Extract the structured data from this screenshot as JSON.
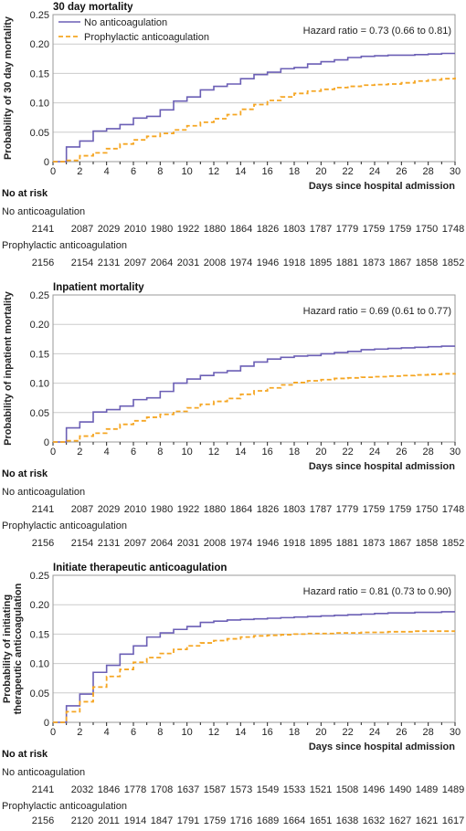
{
  "colors": {
    "no_anticoag": "#6b5fb5",
    "prophylactic": "#f5a623",
    "grid": "#cccccc",
    "frame": "#999999"
  },
  "legend": {
    "no_anticoag": "No anticoagulation",
    "prophylactic": "Prophylactic anticoagulation"
  },
  "xaxis": {
    "label": "Days since hospital admission",
    "ticks": [
      0,
      2,
      4,
      6,
      8,
      10,
      12,
      14,
      16,
      18,
      20,
      22,
      24,
      26,
      28,
      30
    ]
  },
  "risk_title": "No at risk",
  "chart_data": [
    {
      "type": "line",
      "step": true,
      "title": "30 day mortality",
      "ylabel": "Probability of 30 day mortality",
      "xlabel": "Days since hospital admission",
      "hazard_ratio": "Hazard ratio = 0.73 (0.66 to 0.81)",
      "xlim": [
        0,
        30
      ],
      "ylim": [
        0,
        0.25
      ],
      "yticks": [
        "0",
        "0.05",
        "0.10",
        "0.15",
        "0.20",
        "0.25"
      ],
      "legend": "top-left",
      "grid": true,
      "series": [
        {
          "name": "No anticoagulation",
          "x": [
            0,
            1,
            2,
            3,
            4,
            5,
            6,
            7,
            8,
            9,
            10,
            11,
            12,
            13,
            14,
            15,
            16,
            17,
            18,
            19,
            20,
            21,
            22,
            23,
            24,
            25,
            26,
            27,
            28,
            29,
            30
          ],
          "y": [
            0,
            0.025,
            0.035,
            0.052,
            0.056,
            0.063,
            0.074,
            0.077,
            0.088,
            0.103,
            0.11,
            0.122,
            0.128,
            0.132,
            0.141,
            0.148,
            0.152,
            0.158,
            0.16,
            0.166,
            0.17,
            0.173,
            0.177,
            0.179,
            0.18,
            0.181,
            0.181,
            0.182,
            0.183,
            0.184,
            0.184
          ]
        },
        {
          "name": "Prophylactic anticoagulation",
          "x": [
            0,
            1,
            2,
            3,
            4,
            5,
            6,
            7,
            8,
            9,
            10,
            11,
            12,
            13,
            14,
            15,
            16,
            17,
            18,
            19,
            20,
            21,
            22,
            23,
            24,
            25,
            26,
            27,
            28,
            29,
            30
          ],
          "y": [
            0,
            0.002,
            0.01,
            0.015,
            0.022,
            0.03,
            0.037,
            0.043,
            0.048,
            0.054,
            0.061,
            0.067,
            0.073,
            0.08,
            0.089,
            0.097,
            0.104,
            0.11,
            0.116,
            0.12,
            0.123,
            0.126,
            0.128,
            0.13,
            0.131,
            0.132,
            0.134,
            0.137,
            0.139,
            0.141,
            0.143
          ]
        }
      ],
      "at_risk": [
        {
          "name": "No anticoagulation",
          "values": [
            2141,
            2087,
            2029,
            2010,
            1980,
            1922,
            1880,
            1864,
            1826,
            1803,
            1787,
            1779,
            1759,
            1759,
            1750,
            1748
          ]
        },
        {
          "name": "Prophylactic anticoagulation",
          "values": [
            2156,
            2154,
            2131,
            2097,
            2064,
            2031,
            2008,
            1974,
            1946,
            1918,
            1895,
            1881,
            1873,
            1867,
            1858,
            1852
          ]
        }
      ]
    },
    {
      "type": "line",
      "step": true,
      "title": "Inpatient mortality",
      "ylabel": "Probability of inpatient mortality",
      "xlabel": "Days since hospital admission",
      "hazard_ratio": "Hazard ratio = 0.69 (0.61 to 0.77)",
      "xlim": [
        0,
        30
      ],
      "ylim": [
        0,
        0.25
      ],
      "yticks": [
        "0",
        "0.05",
        "0.10",
        "0.15",
        "0.20",
        "0.25"
      ],
      "grid": true,
      "series": [
        {
          "name": "No anticoagulation",
          "x": [
            0,
            1,
            2,
            3,
            4,
            5,
            6,
            7,
            8,
            9,
            10,
            11,
            12,
            13,
            14,
            15,
            16,
            17,
            18,
            19,
            20,
            21,
            22,
            23,
            24,
            25,
            26,
            27,
            28,
            29,
            30
          ],
          "y": [
            0,
            0.024,
            0.034,
            0.051,
            0.055,
            0.061,
            0.072,
            0.075,
            0.086,
            0.1,
            0.107,
            0.113,
            0.118,
            0.121,
            0.129,
            0.136,
            0.141,
            0.144,
            0.146,
            0.147,
            0.15,
            0.152,
            0.154,
            0.157,
            0.158,
            0.159,
            0.16,
            0.161,
            0.162,
            0.163,
            0.163
          ]
        },
        {
          "name": "Prophylactic anticoagulation",
          "x": [
            0,
            1,
            2,
            3,
            4,
            5,
            6,
            7,
            8,
            9,
            10,
            11,
            12,
            13,
            14,
            15,
            16,
            17,
            18,
            19,
            20,
            21,
            22,
            23,
            24,
            25,
            26,
            27,
            28,
            29,
            30
          ],
          "y": [
            0,
            0.002,
            0.01,
            0.015,
            0.022,
            0.03,
            0.036,
            0.042,
            0.047,
            0.052,
            0.058,
            0.064,
            0.069,
            0.074,
            0.081,
            0.087,
            0.092,
            0.097,
            0.101,
            0.104,
            0.106,
            0.108,
            0.109,
            0.11,
            0.111,
            0.112,
            0.113,
            0.114,
            0.115,
            0.116,
            0.117
          ]
        }
      ],
      "at_risk": [
        {
          "name": "No anticoagulation",
          "values": [
            2141,
            2087,
            2029,
            2010,
            1980,
            1922,
            1880,
            1864,
            1826,
            1803,
            1787,
            1779,
            1759,
            1759,
            1750,
            1748
          ]
        },
        {
          "name": "Prophylactic anticoagulation",
          "values": [
            2156,
            2154,
            2131,
            2097,
            2064,
            2031,
            2008,
            1974,
            1946,
            1918,
            1895,
            1881,
            1873,
            1867,
            1858,
            1852
          ]
        }
      ]
    },
    {
      "type": "line",
      "step": true,
      "title": "Initiate therapeutic anticoagulation",
      "ylabel": "Probability of initiating therapeutic anticoagulation",
      "ylabel_lines": [
        "Probability of initiating",
        "therapeutic anticoagulation"
      ],
      "xlabel": "Days since hospital admission",
      "hazard_ratio": "Hazard ratio = 0.81 (0.73 to 0.90)",
      "xlim": [
        0,
        30
      ],
      "ylim": [
        0,
        0.25
      ],
      "yticks": [
        "0",
        "0.05",
        "0.10",
        "0.15",
        "0.20",
        "0.25"
      ],
      "grid": true,
      "series": [
        {
          "name": "No anticoagulation",
          "x": [
            0,
            1,
            2,
            3,
            4,
            5,
            6,
            7,
            8,
            9,
            10,
            11,
            12,
            13,
            14,
            15,
            16,
            17,
            18,
            19,
            20,
            21,
            22,
            23,
            24,
            25,
            26,
            27,
            28,
            29,
            30
          ],
          "y": [
            0,
            0.028,
            0.048,
            0.085,
            0.097,
            0.116,
            0.13,
            0.145,
            0.152,
            0.158,
            0.163,
            0.17,
            0.172,
            0.174,
            0.175,
            0.176,
            0.177,
            0.178,
            0.179,
            0.18,
            0.181,
            0.182,
            0.183,
            0.184,
            0.185,
            0.186,
            0.186,
            0.187,
            0.187,
            0.188,
            0.188
          ]
        },
        {
          "name": "Prophylactic anticoagulation",
          "x": [
            0,
            1,
            2,
            3,
            4,
            5,
            6,
            7,
            8,
            9,
            10,
            11,
            12,
            13,
            14,
            15,
            16,
            17,
            18,
            19,
            20,
            21,
            22,
            23,
            24,
            25,
            26,
            27,
            28,
            29,
            30
          ],
          "y": [
            0,
            0.018,
            0.035,
            0.06,
            0.078,
            0.09,
            0.102,
            0.11,
            0.117,
            0.124,
            0.13,
            0.135,
            0.139,
            0.142,
            0.145,
            0.147,
            0.148,
            0.149,
            0.15,
            0.151,
            0.151,
            0.152,
            0.152,
            0.153,
            0.153,
            0.154,
            0.154,
            0.155,
            0.155,
            0.155,
            0.155
          ]
        }
      ],
      "at_risk": [
        {
          "name": "No anticoagulation",
          "values": [
            2141,
            2032,
            1846,
            1778,
            1708,
            1637,
            1587,
            1573,
            1549,
            1533,
            1521,
            1508,
            1496,
            1490,
            1489,
            1489
          ]
        },
        {
          "name": "Prophylactic anticoagulation",
          "values": [
            2156,
            2120,
            2011,
            1914,
            1847,
            1791,
            1759,
            1716,
            1689,
            1664,
            1651,
            1638,
            1632,
            1627,
            1621,
            1617
          ]
        }
      ]
    }
  ]
}
